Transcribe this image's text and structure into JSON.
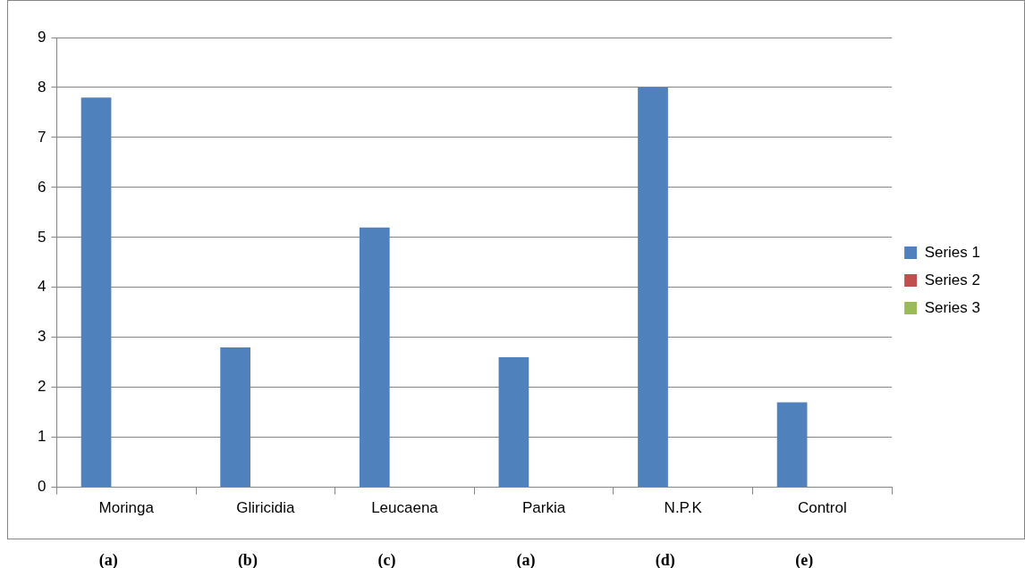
{
  "chart_data": {
    "type": "bar",
    "categories": [
      "Moringa",
      "Gliricidia",
      "Leucaena",
      "Parkia",
      "N.P.K",
      "Control"
    ],
    "series": [
      {
        "name": "Series 1",
        "color": "#4f81bd",
        "values": [
          7.8,
          2.8,
          5.2,
          2.6,
          8.0,
          1.7
        ]
      },
      {
        "name": "Series 2",
        "color": "#c0504d",
        "values": [
          null,
          null,
          null,
          null,
          null,
          null
        ]
      },
      {
        "name": "Series 3",
        "color": "#9bbb59",
        "values": [
          null,
          null,
          null,
          null,
          null,
          null
        ]
      }
    ],
    "ylim": [
      0,
      9
    ],
    "yticks": [
      0,
      1,
      2,
      3,
      4,
      5,
      6,
      7,
      8,
      9
    ],
    "grid": "y",
    "legend": "right",
    "annotations": [
      "(a)",
      "(b)",
      "(c)",
      "(a)",
      "(d)",
      "(e)"
    ]
  }
}
